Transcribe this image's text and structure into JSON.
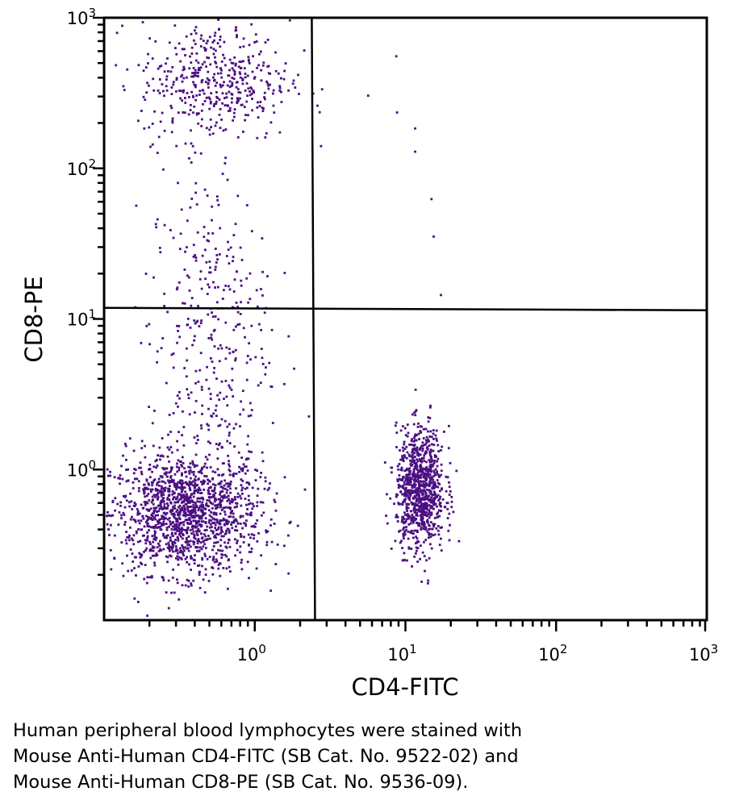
{
  "chart_data": {
    "type": "scatter",
    "xlabel": "CD4-FITC",
    "ylabel": "CD8-PE",
    "xscale": "log",
    "yscale": "log",
    "xlim": [
      0.1,
      1000
    ],
    "ylim": [
      0.1,
      1000
    ],
    "grid": false,
    "point_color": "#4b0f82",
    "x_ticks": [
      {
        "value": 1,
        "base": "10",
        "exp": "0"
      },
      {
        "value": 10,
        "base": "10",
        "exp": "1"
      },
      {
        "value": 100,
        "base": "10",
        "exp": "2"
      },
      {
        "value": 1000,
        "base": "10",
        "exp": "3"
      }
    ],
    "y_ticks": [
      {
        "value": 1,
        "base": "10",
        "exp": "0"
      },
      {
        "value": 10,
        "base": "10",
        "exp": "1"
      },
      {
        "value": 100,
        "base": "10",
        "exp": "2"
      },
      {
        "value": 1000,
        "base": "10",
        "exp": "3"
      }
    ],
    "quadrant_gates": {
      "x": 2.45,
      "y": 11.7
    },
    "populations": [
      {
        "label": "CD4-CD8- (lower left)",
        "center": [
          0.35,
          0.51
        ],
        "log_spread": [
          0.25,
          0.2
        ],
        "count": 1500
      },
      {
        "label": "CD8+ (upper left)",
        "center": [
          0.54,
          380
        ],
        "log_spread": [
          0.25,
          0.2
        ],
        "count": 450
      },
      {
        "label": "CD8 intermediate streak",
        "center": [
          0.5,
          8
        ],
        "log_spread": [
          0.2,
          0.55
        ],
        "count": 350
      },
      {
        "label": "CD4+ (lower right)",
        "center": [
          12.6,
          0.74
        ],
        "log_spread": [
          0.08,
          0.2
        ],
        "count": 900
      }
    ],
    "outlier_points": [
      [
        8.7,
        555
      ],
      [
        5.66,
        304
      ],
      [
        8.8,
        235
      ],
      [
        11.6,
        184
      ],
      [
        11.6,
        129
      ],
      [
        14.9,
        62.5
      ],
      [
        15.4,
        35.2
      ],
      [
        17.2,
        14.4
      ]
    ]
  },
  "caption": [
    "Human peripheral blood lymphocytes were stained with",
    "Mouse Anti-Human CD4-FITC (SB Cat. No. 9522-02) and",
    "Mouse Anti-Human CD8-PE (SB Cat. No. 9536-09)."
  ]
}
